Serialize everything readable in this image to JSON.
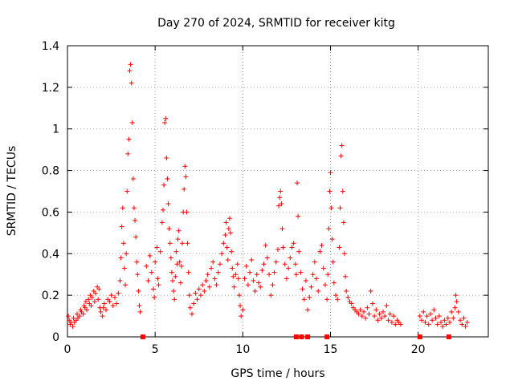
{
  "chart_data": {
    "type": "scatter",
    "title": "Day 270 of 2024, SRMTID for receiver kitg",
    "xlabel": "GPS time / hours",
    "ylabel": "SRMTID / TECUs",
    "xlim": [
      0,
      24
    ],
    "ylim": [
      0,
      1.4
    ],
    "xticks": [
      0,
      5,
      10,
      15,
      20
    ],
    "xtick_labels": [
      "0",
      "5",
      "10",
      "15",
      "20"
    ],
    "yticks": [
      0,
      0.2,
      0.4,
      0.6,
      0.8,
      1.0,
      1.2,
      1.4
    ],
    "ytick_labels": [
      "0",
      "0.2",
      "0.4",
      "0.6",
      "0.8",
      "1",
      "1.2",
      "1.4"
    ],
    "grid": true,
    "marker": "plus",
    "color": "#ff0000",
    "series": [
      {
        "name": "SRMTID",
        "points": [
          [
            0.05,
            0.1
          ],
          [
            0.1,
            0.08
          ],
          [
            0.15,
            0.06
          ],
          [
            0.2,
            0.07
          ],
          [
            0.3,
            0.05
          ],
          [
            0.35,
            0.09
          ],
          [
            0.4,
            0.07
          ],
          [
            0.5,
            0.08
          ],
          [
            0.55,
            0.11
          ],
          [
            0.6,
            0.09
          ],
          [
            0.7,
            0.1
          ],
          [
            0.75,
            0.13
          ],
          [
            0.8,
            0.12
          ],
          [
            0.9,
            0.11
          ],
          [
            0.95,
            0.15
          ],
          [
            1.0,
            0.14
          ],
          [
            1.05,
            0.17
          ],
          [
            1.1,
            0.13
          ],
          [
            1.2,
            0.18
          ],
          [
            1.25,
            0.16
          ],
          [
            1.3,
            0.2
          ],
          [
            1.35,
            0.15
          ],
          [
            1.4,
            0.19
          ],
          [
            1.5,
            0.22
          ],
          [
            1.55,
            0.17
          ],
          [
            1.6,
            0.21
          ],
          [
            1.7,
            0.24
          ],
          [
            1.75,
            0.18
          ],
          [
            1.8,
            0.23
          ],
          [
            1.85,
            0.14
          ],
          [
            1.9,
            0.12
          ],
          [
            2.0,
            0.1
          ],
          [
            2.05,
            0.14
          ],
          [
            2.1,
            0.16
          ],
          [
            2.2,
            0.13
          ],
          [
            2.3,
            0.18
          ],
          [
            2.4,
            0.17
          ],
          [
            2.5,
            0.2
          ],
          [
            2.6,
            0.15
          ],
          [
            2.7,
            0.19
          ],
          [
            2.8,
            0.16
          ],
          [
            2.9,
            0.21
          ],
          [
            3.0,
            0.27
          ],
          [
            3.05,
            0.38
          ],
          [
            3.1,
            0.53
          ],
          [
            3.15,
            0.62
          ],
          [
            3.2,
            0.45
          ],
          [
            3.25,
            0.33
          ],
          [
            3.3,
            0.25
          ],
          [
            3.35,
            0.4
          ],
          [
            3.4,
            0.7
          ],
          [
            3.45,
            0.88
          ],
          [
            3.5,
            0.95
          ],
          [
            3.55,
            1.28
          ],
          [
            3.6,
            1.31
          ],
          [
            3.65,
            1.22
          ],
          [
            3.7,
            1.03
          ],
          [
            3.75,
            0.76
          ],
          [
            3.8,
            0.62
          ],
          [
            3.85,
            0.56
          ],
          [
            3.9,
            0.48
          ],
          [
            3.95,
            0.36
          ],
          [
            4.0,
            0.3
          ],
          [
            4.05,
            0.22
          ],
          [
            4.1,
            0.15
          ],
          [
            4.15,
            0.12
          ],
          [
            4.5,
            0.34
          ],
          [
            4.6,
            0.27
          ],
          [
            4.7,
            0.39
          ],
          [
            4.8,
            0.31
          ],
          [
            4.9,
            0.23
          ],
          [
            4.95,
            0.19
          ],
          [
            5.0,
            0.36
          ],
          [
            5.1,
            0.43
          ],
          [
            5.15,
            0.28
          ],
          [
            5.2,
            0.25
          ],
          [
            5.3,
            0.41
          ],
          [
            5.4,
            0.55
          ],
          [
            5.45,
            0.61
          ],
          [
            5.5,
            0.73
          ],
          [
            5.55,
            1.03
          ],
          [
            5.6,
            1.05
          ],
          [
            5.65,
            0.86
          ],
          [
            5.7,
            0.76
          ],
          [
            5.75,
            0.64
          ],
          [
            5.8,
            0.52
          ],
          [
            5.85,
            0.45
          ],
          [
            5.9,
            0.38
          ],
          [
            5.95,
            0.31
          ],
          [
            6.0,
            0.27
          ],
          [
            6.05,
            0.22
          ],
          [
            6.1,
            0.18
          ],
          [
            6.15,
            0.29
          ],
          [
            6.2,
            0.41
          ],
          [
            6.25,
            0.35
          ],
          [
            6.3,
            0.47
          ],
          [
            6.35,
            0.51
          ],
          [
            6.4,
            0.36
          ],
          [
            6.45,
            0.26
          ],
          [
            6.5,
            0.34
          ],
          [
            6.55,
            0.45
          ],
          [
            6.6,
            0.6
          ],
          [
            6.65,
            0.71
          ],
          [
            6.7,
            0.82
          ],
          [
            6.75,
            0.77
          ],
          [
            6.8,
            0.6
          ],
          [
            6.85,
            0.45
          ],
          [
            6.9,
            0.31
          ],
          [
            6.95,
            0.2
          ],
          [
            7.0,
            0.14
          ],
          [
            7.1,
            0.11
          ],
          [
            7.2,
            0.16
          ],
          [
            7.3,
            0.21
          ],
          [
            7.4,
            0.18
          ],
          [
            7.5,
            0.23
          ],
          [
            7.6,
            0.2
          ],
          [
            7.7,
            0.25
          ],
          [
            7.8,
            0.22
          ],
          [
            7.9,
            0.27
          ],
          [
            8.0,
            0.3
          ],
          [
            8.1,
            0.24
          ],
          [
            8.2,
            0.33
          ],
          [
            8.3,
            0.36
          ],
          [
            8.4,
            0.28
          ],
          [
            8.5,
            0.25
          ],
          [
            8.6,
            0.31
          ],
          [
            8.7,
            0.35
          ],
          [
            8.8,
            0.4
          ],
          [
            8.9,
            0.45
          ],
          [
            9.0,
            0.49
          ],
          [
            9.05,
            0.55
          ],
          [
            9.1,
            0.43
          ],
          [
            9.15,
            0.37
          ],
          [
            9.2,
            0.52
          ],
          [
            9.25,
            0.57
          ],
          [
            9.3,
            0.5
          ],
          [
            9.35,
            0.41
          ],
          [
            9.4,
            0.33
          ],
          [
            9.45,
            0.29
          ],
          [
            9.5,
            0.24
          ],
          [
            9.6,
            0.3
          ],
          [
            9.7,
            0.35
          ],
          [
            9.75,
            0.28
          ],
          [
            9.8,
            0.2
          ],
          [
            9.85,
            0.15
          ],
          [
            9.9,
            0.1
          ],
          [
            10.0,
            0.13
          ],
          [
            10.1,
            0.28
          ],
          [
            10.2,
            0.34
          ],
          [
            10.3,
            0.25
          ],
          [
            10.4,
            0.31
          ],
          [
            10.5,
            0.37
          ],
          [
            10.6,
            0.27
          ],
          [
            10.7,
            0.22
          ],
          [
            10.8,
            0.3
          ],
          [
            10.9,
            0.26
          ],
          [
            11.0,
            0.24
          ],
          [
            11.1,
            0.32
          ],
          [
            11.2,
            0.35
          ],
          [
            11.3,
            0.44
          ],
          [
            11.4,
            0.38
          ],
          [
            11.5,
            0.3
          ],
          [
            11.6,
            0.2
          ],
          [
            11.7,
            0.25
          ],
          [
            11.8,
            0.31
          ],
          [
            11.9,
            0.36
          ],
          [
            12.0,
            0.42
          ],
          [
            12.05,
            0.63
          ],
          [
            12.1,
            0.67
          ],
          [
            12.15,
            0.7
          ],
          [
            12.2,
            0.64
          ],
          [
            12.25,
            0.52
          ],
          [
            12.3,
            0.43
          ],
          [
            12.4,
            0.35
          ],
          [
            12.5,
            0.28
          ],
          [
            12.6,
            0.33
          ],
          [
            12.7,
            0.38
          ],
          [
            12.8,
            0.43
          ],
          [
            12.9,
            0.45
          ],
          [
            13.0,
            0.35
          ],
          [
            13.05,
            0.3
          ],
          [
            13.1,
            0.74
          ],
          [
            13.15,
            0.58
          ],
          [
            13.2,
            0.41
          ],
          [
            13.3,
            0.31
          ],
          [
            13.4,
            0.23
          ],
          [
            13.5,
            0.18
          ],
          [
            13.6,
            0.27
          ],
          [
            13.7,
            0.13
          ],
          [
            13.8,
            0.19
          ],
          [
            13.9,
            0.24
          ],
          [
            14.0,
            0.3
          ],
          [
            14.1,
            0.36
          ],
          [
            14.2,
            0.28
          ],
          [
            14.3,
            0.22
          ],
          [
            14.4,
            0.41
          ],
          [
            14.5,
            0.44
          ],
          [
            14.6,
            0.33
          ],
          [
            14.7,
            0.25
          ],
          [
            14.8,
            0.18
          ],
          [
            14.85,
            0.3
          ],
          [
            14.9,
            0.52
          ],
          [
            14.95,
            0.7
          ],
          [
            15.0,
            0.79
          ],
          [
            15.05,
            0.62
          ],
          [
            15.1,
            0.47
          ],
          [
            15.15,
            0.36
          ],
          [
            15.2,
            0.26
          ],
          [
            15.3,
            0.2
          ],
          [
            15.4,
            0.18
          ],
          [
            15.5,
            0.43
          ],
          [
            15.55,
            0.62
          ],
          [
            15.6,
            0.87
          ],
          [
            15.65,
            0.92
          ],
          [
            15.7,
            0.7
          ],
          [
            15.75,
            0.55
          ],
          [
            15.8,
            0.4
          ],
          [
            15.85,
            0.29
          ],
          [
            15.9,
            0.22
          ],
          [
            16.0,
            0.19
          ],
          [
            16.1,
            0.17
          ],
          [
            16.2,
            0.16
          ],
          [
            16.3,
            0.14
          ],
          [
            16.4,
            0.13
          ],
          [
            16.5,
            0.12
          ],
          [
            16.6,
            0.11
          ],
          [
            16.7,
            0.13
          ],
          [
            16.8,
            0.1
          ],
          [
            16.9,
            0.12
          ],
          [
            17.0,
            0.09
          ],
          [
            17.1,
            0.14
          ],
          [
            17.2,
            0.11
          ],
          [
            17.3,
            0.22
          ],
          [
            17.4,
            0.16
          ],
          [
            17.5,
            0.1
          ],
          [
            17.6,
            0.13
          ],
          [
            17.7,
            0.08
          ],
          [
            17.8,
            0.11
          ],
          [
            17.9,
            0.09
          ],
          [
            18.0,
            0.12
          ],
          [
            18.1,
            0.1
          ],
          [
            18.2,
            0.15
          ],
          [
            18.3,
            0.08
          ],
          [
            18.4,
            0.11
          ],
          [
            18.5,
            0.07
          ],
          [
            18.6,
            0.1
          ],
          [
            18.7,
            0.06
          ],
          [
            18.8,
            0.08
          ],
          [
            18.9,
            0.07
          ],
          [
            19.0,
            0.06
          ],
          [
            20.1,
            0.1
          ],
          [
            20.2,
            0.08
          ],
          [
            20.3,
            0.12
          ],
          [
            20.4,
            0.07
          ],
          [
            20.5,
            0.1
          ],
          [
            20.6,
            0.06
          ],
          [
            20.7,
            0.11
          ],
          [
            20.8,
            0.08
          ],
          [
            20.9,
            0.13
          ],
          [
            21.0,
            0.09
          ],
          [
            21.1,
            0.06
          ],
          [
            21.2,
            0.1
          ],
          [
            21.3,
            0.07
          ],
          [
            21.4,
            0.05
          ],
          [
            21.5,
            0.08
          ],
          [
            21.6,
            0.06
          ],
          [
            21.7,
            0.09
          ],
          [
            21.8,
            0.07
          ],
          [
            21.9,
            0.12
          ],
          [
            22.0,
            0.09
          ],
          [
            22.1,
            0.14
          ],
          [
            22.15,
            0.2
          ],
          [
            22.2,
            0.17
          ],
          [
            22.3,
            0.12
          ],
          [
            22.4,
            0.08
          ],
          [
            22.5,
            0.06
          ],
          [
            22.6,
            0.09
          ],
          [
            22.7,
            0.05
          ],
          [
            22.8,
            0.07
          ]
        ]
      },
      {
        "name": "zero-values",
        "marker": "square",
        "points": [
          [
            4.3,
            0
          ],
          [
            13.05,
            0
          ],
          [
            13.35,
            0
          ],
          [
            13.7,
            0
          ],
          [
            14.8,
            0
          ],
          [
            20.1,
            0
          ],
          [
            21.75,
            0
          ]
        ]
      }
    ]
  }
}
